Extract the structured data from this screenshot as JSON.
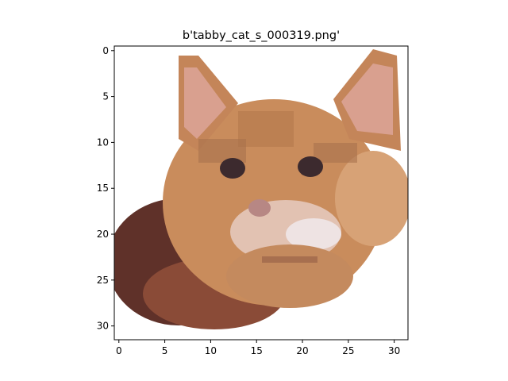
{
  "figure": {
    "title": "b'tabby_cat_s_000319.png'"
  },
  "image": {
    "content": "pixelated 32x32 photo of an orange tabby cat head on white background",
    "pixel_grid": [
      32,
      32
    ]
  },
  "axes": {
    "x_ticks": [
      "0",
      "5",
      "10",
      "15",
      "20",
      "25",
      "30"
    ],
    "y_ticks": [
      "0",
      "5",
      "10",
      "15",
      "20",
      "25",
      "30"
    ],
    "x_tick_values": [
      0,
      5,
      10,
      15,
      20,
      25,
      30
    ],
    "y_tick_values": [
      0,
      5,
      10,
      15,
      20,
      25,
      30
    ]
  },
  "colors": {
    "background": "#ffffff",
    "fur_orange": "#c98a58",
    "fur_light": "#e2b48f",
    "ear_inner": "#d9a08f",
    "muzzle_white": "#eee3e3",
    "shadow_dark": "#5a2c24",
    "shadow_mid": "#8a4e3b",
    "eye_dark": "#3c2a2e",
    "nose_pink": "#b78784"
  }
}
